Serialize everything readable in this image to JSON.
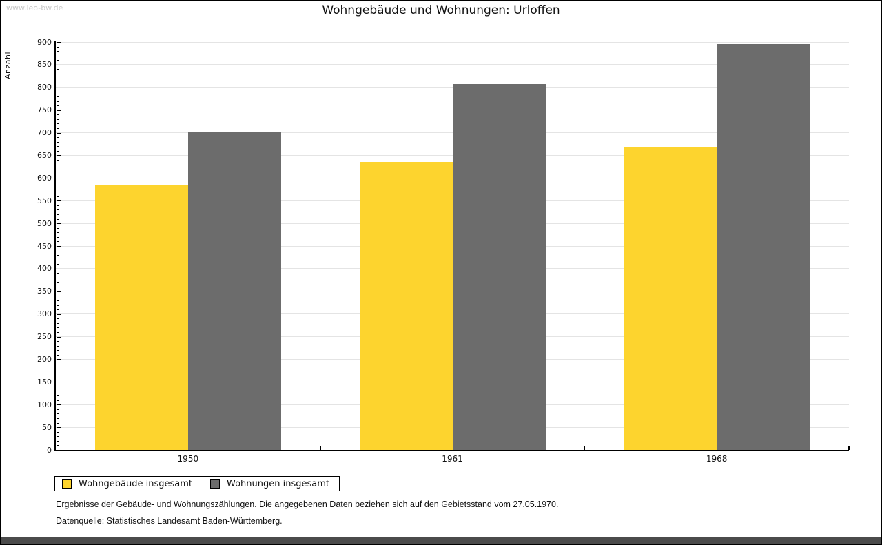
{
  "page": {
    "watermark": "www.leo-bw.de"
  },
  "chart_data": {
    "type": "bar",
    "title": "Wohngebäude und Wohnungen: Urloffen",
    "xlabel": "",
    "ylabel": "Anzahl",
    "categories": [
      "1950",
      "1961",
      "1968"
    ],
    "series": [
      {
        "name": "Wohngebäude insgesamt",
        "color": "#FDD42E",
        "values": [
          585,
          635,
          667
        ]
      },
      {
        "name": "Wohnungen insgesamt",
        "color": "#6C6C6C",
        "values": [
          703,
          808,
          896
        ]
      }
    ],
    "ylim": [
      0,
      900
    ],
    "y_major_step": 50,
    "y_minor_step": 10,
    "grid": true,
    "gridline_color": "#E4E4E4",
    "legend_position": "bottom-left"
  },
  "footnotes": [
    "Ergebnisse der Gebäude- und Wohnungszählungen. Die angegebenen Daten beziehen sich auf den Gebietsstand vom 27.05.1970.",
    "Datenquelle: Statistisches Landesamt Baden-Württemberg."
  ]
}
